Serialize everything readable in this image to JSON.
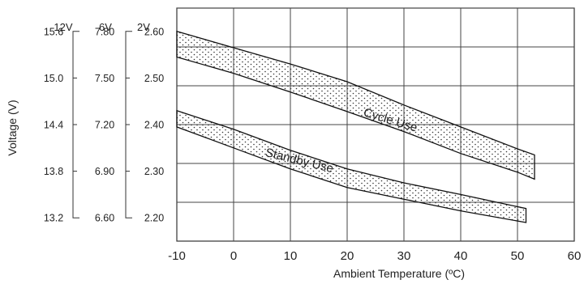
{
  "chart_data": {
    "type": "area",
    "title": "",
    "xlabel": "Ambient Temperature (ºC)",
    "ylabel": "Voltage (V)",
    "xlim": [
      -10,
      60
    ],
    "ylim": [
      2.15,
      2.65
    ],
    "x_ticks": [
      "-10",
      "0",
      "10",
      "20",
      "30",
      "40",
      "50",
      "60"
    ],
    "y_axes": [
      {
        "header": "12V",
        "ticks": [
          "15.6",
          "15.0",
          "14.4",
          "13.8",
          "13.2"
        ]
      },
      {
        "header": "6V",
        "ticks": [
          "7.80",
          "7.50",
          "7.20",
          "6.90",
          "6.60"
        ]
      },
      {
        "header": "2V",
        "ticks": [
          "2.60",
          "2.50",
          "2.40",
          "2.30",
          "2.20"
        ]
      }
    ],
    "y_tick_values": [
      2.6,
      2.5,
      2.4,
      2.3,
      2.2
    ],
    "grid": true,
    "series": [
      {
        "name": "Cycle Use",
        "x": [
          -10,
          0,
          10,
          20,
          30,
          40,
          50,
          53
        ],
        "upper": [
          2.6,
          2.565,
          2.53,
          2.492,
          2.442,
          2.395,
          2.348,
          2.335
        ],
        "lower": [
          2.545,
          2.51,
          2.47,
          2.428,
          2.385,
          2.338,
          2.298,
          2.283
        ]
      },
      {
        "name": "Standby Use",
        "x": [
          -10,
          0,
          10,
          20,
          30,
          40,
          51.5
        ],
        "upper": [
          2.43,
          2.39,
          2.345,
          2.305,
          2.275,
          2.25,
          2.22
        ],
        "lower": [
          2.395,
          2.35,
          2.305,
          2.265,
          2.24,
          2.215,
          2.19
        ]
      }
    ]
  }
}
